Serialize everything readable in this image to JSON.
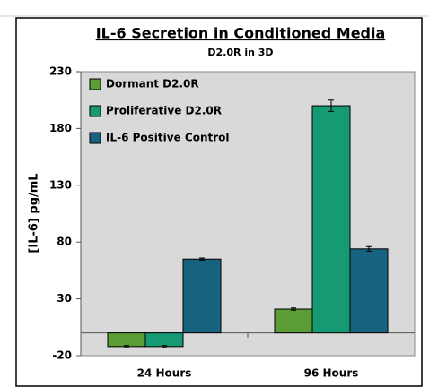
{
  "chart_data": {
    "type": "bar",
    "title": "IL-6 Secretion in Conditioned Media",
    "subtitle": "D2.0R in 3D",
    "y_label": "[IL-6] pg/mL",
    "categories": [
      "24 Hours",
      "96 Hours"
    ],
    "series": [
      {
        "name": "Dormant D2.0R",
        "color": "#5c9e35",
        "values": [
          -12,
          21
        ],
        "errors": [
          1,
          1
        ]
      },
      {
        "name": "Proliferative D2.0R",
        "color": "#159a74",
        "values": [
          -12,
          200
        ],
        "errors": [
          1,
          5
        ]
      },
      {
        "name": "IL-6 Positive Control",
        "color": "#17627e",
        "values": [
          65,
          74
        ],
        "errors": [
          1,
          2
        ]
      }
    ],
    "ylim": [
      -20,
      230
    ],
    "yticks": [
      -20,
      30,
      80,
      130,
      180,
      230
    ],
    "grid": false,
    "legend": "top-left"
  }
}
